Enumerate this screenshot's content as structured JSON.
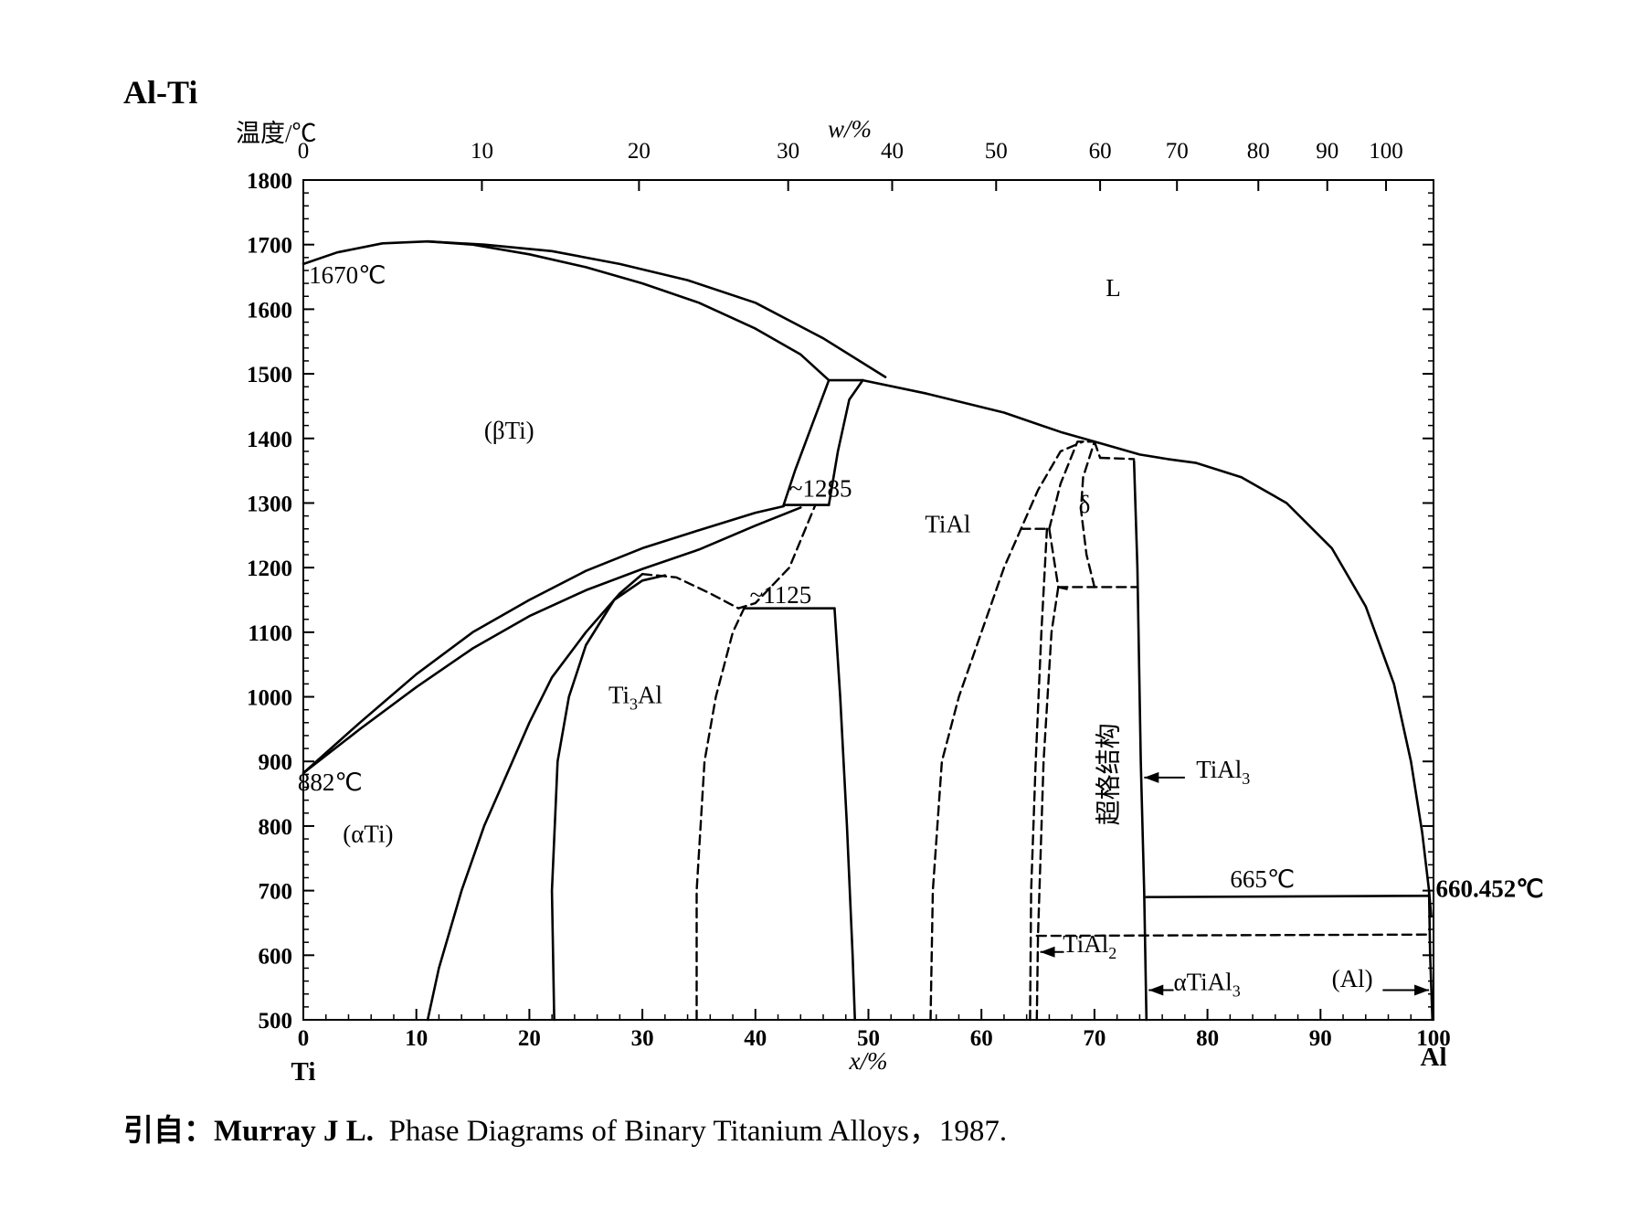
{
  "title": "Al-Ti",
  "citation": {
    "prefix": "引自：",
    "author": "Murray J L.",
    "text": "Phase Diagrams of Binary Titanium Alloys，1987."
  },
  "chart_data": {
    "type": "line",
    "title": "Al-Ti",
    "xlabel": "x/%",
    "x2label": "w/%",
    "ylabel": "温度/℃",
    "xlim": [
      0,
      100
    ],
    "ylim": [
      500,
      1800
    ],
    "x_ticks": [
      0,
      10,
      20,
      30,
      40,
      50,
      60,
      70,
      80,
      90,
      100
    ],
    "x_tick_labels": [
      "0",
      "10",
      "20",
      "30",
      "40",
      "50",
      "60",
      "70",
      "80",
      "90",
      "100"
    ],
    "w_ticks": [
      0,
      10,
      20,
      30,
      40,
      50,
      60,
      70,
      80,
      90,
      100
    ],
    "w_tick_labels": [
      "0",
      "10",
      "20",
      "30",
      "40",
      "50",
      "60",
      "70",
      "80",
      "90",
      "100"
    ],
    "w_tick_positions_x": [
      0,
      15.8,
      29.7,
      42.9,
      52.1,
      61.3,
      70.5,
      77.3,
      84.5,
      90.6,
      95.8
    ],
    "y_ticks": [
      500,
      600,
      700,
      800,
      900,
      1000,
      1100,
      1200,
      1300,
      1400,
      1500,
      1600,
      1700,
      1800
    ],
    "y_tick_labels": [
      "500",
      "600",
      "700",
      "800",
      "900",
      "1000",
      "1100",
      "1200",
      "1300",
      "1400",
      "1500",
      "1600",
      "1700",
      "1800"
    ],
    "x_end_labels": {
      "left": "Ti",
      "right": "Al"
    },
    "lines": [
      {
        "style": "solid",
        "points": [
          [
            0,
            1670
          ],
          [
            3,
            1688
          ],
          [
            7,
            1702
          ],
          [
            11,
            1705
          ],
          [
            15,
            1700
          ],
          [
            20,
            1685
          ],
          [
            25,
            1665
          ],
          [
            30,
            1640
          ],
          [
            35,
            1610
          ],
          [
            40,
            1570
          ],
          [
            44,
            1530
          ],
          [
            46.5,
            1490
          ]
        ]
      },
      {
        "style": "solid",
        "points": [
          [
            11,
            1705
          ],
          [
            16,
            1700
          ],
          [
            22,
            1690
          ],
          [
            28,
            1670
          ],
          [
            34,
            1645
          ],
          [
            40,
            1610
          ],
          [
            46,
            1555
          ],
          [
            51.5,
            1495
          ]
        ]
      },
      {
        "style": "solid",
        "points": [
          [
            0,
            882
          ],
          [
            5,
            960
          ],
          [
            10,
            1035
          ],
          [
            15,
            1100
          ],
          [
            20,
            1150
          ],
          [
            25,
            1195
          ],
          [
            30,
            1230
          ],
          [
            35,
            1258
          ],
          [
            40,
            1285
          ],
          [
            42.5,
            1295
          ]
        ]
      },
      {
        "style": "solid",
        "points": [
          [
            0,
            882
          ],
          [
            5,
            950
          ],
          [
            10,
            1015
          ],
          [
            15,
            1075
          ],
          [
            20,
            1125
          ],
          [
            25,
            1165
          ],
          [
            30,
            1198
          ],
          [
            35,
            1228
          ],
          [
            40,
            1265
          ],
          [
            44,
            1293
          ]
        ]
      },
      {
        "style": "solid",
        "points": [
          [
            42.5,
            1297
          ],
          [
            46.5,
            1297
          ]
        ]
      },
      {
        "style": "solid",
        "points": [
          [
            42.5,
            1297
          ],
          [
            43.5,
            1350
          ],
          [
            45,
            1420
          ],
          [
            46.5,
            1490
          ]
        ]
      },
      {
        "style": "solid",
        "points": [
          [
            46.5,
            1297
          ],
          [
            47.3,
            1380
          ],
          [
            48.3,
            1460
          ],
          [
            49.5,
            1490
          ]
        ]
      },
      {
        "style": "solid",
        "points": [
          [
            46.5,
            1490
          ],
          [
            49.5,
            1490
          ]
        ]
      },
      {
        "style": "solid",
        "points": [
          [
            49.5,
            1490
          ],
          [
            55,
            1470
          ],
          [
            62,
            1440
          ],
          [
            67,
            1410
          ],
          [
            71,
            1390
          ],
          [
            74,
            1375
          ],
          [
            76.5,
            1368
          ],
          [
            79,
            1362
          ],
          [
            83,
            1340
          ],
          [
            87,
            1300
          ],
          [
            91,
            1230
          ],
          [
            94,
            1140
          ],
          [
            96.5,
            1020
          ],
          [
            98,
            900
          ],
          [
            99,
            790
          ],
          [
            99.6,
            700
          ],
          [
            99.8,
            660
          ]
        ]
      },
      {
        "style": "solid",
        "points": [
          [
            42.5,
            1295
          ],
          [
            49.5,
            1490
          ]
        ],
        "hidden": true
      },
      {
        "style": "solid",
        "points": [
          [
            11,
            500
          ],
          [
            12,
            580
          ],
          [
            14,
            700
          ],
          [
            16,
            800
          ],
          [
            18,
            880
          ],
          [
            20,
            960
          ],
          [
            22,
            1030
          ],
          [
            25,
            1100
          ],
          [
            28,
            1160
          ],
          [
            30,
            1190
          ]
        ]
      },
      {
        "style": "solid",
        "points": [
          [
            22.2,
            500
          ],
          [
            22,
            700
          ],
          [
            22.5,
            900
          ],
          [
            23.5,
            1000
          ],
          [
            25,
            1080
          ],
          [
            27.5,
            1150
          ],
          [
            30,
            1180
          ],
          [
            32,
            1188
          ]
        ]
      },
      {
        "style": "solid",
        "points": [
          [
            39,
            1137
          ],
          [
            47,
            1137
          ]
        ]
      },
      {
        "style": "solid",
        "points": [
          [
            47,
            1137
          ],
          [
            47.5,
            1000
          ],
          [
            48.1,
            800
          ],
          [
            48.6,
            600
          ],
          [
            48.8,
            500
          ]
        ]
      },
      {
        "style": "solid",
        "points": [
          [
            73.5,
            1365
          ],
          [
            73.8,
            1200
          ],
          [
            74.1,
            900
          ],
          [
            74.4,
            700
          ],
          [
            74.6,
            500
          ]
        ]
      },
      {
        "style": "solid",
        "points": [
          [
            74.6,
            690
          ],
          [
            99.6,
            692
          ]
        ]
      },
      {
        "style": "dashed",
        "points": [
          [
            30,
            1190
          ],
          [
            33,
            1185
          ],
          [
            36,
            1160
          ],
          [
            38.5,
            1137
          ],
          [
            40,
            1145
          ],
          [
            43,
            1200
          ],
          [
            45.3,
            1297
          ]
        ]
      },
      {
        "style": "dashed",
        "points": [
          [
            34.8,
            500
          ],
          [
            34.8,
            700
          ],
          [
            35.5,
            900
          ],
          [
            36.5,
            1000
          ],
          [
            38,
            1100
          ],
          [
            39,
            1137
          ]
        ]
      },
      {
        "style": "dashed",
        "points": [
          [
            55.5,
            500
          ],
          [
            55.7,
            700
          ],
          [
            56.5,
            900
          ],
          [
            58,
            1000
          ],
          [
            60,
            1100
          ],
          [
            62,
            1200
          ],
          [
            63.5,
            1260
          ],
          [
            65,
            1320
          ],
          [
            67,
            1380
          ],
          [
            69,
            1395
          ]
        ]
      },
      {
        "style": "dashed",
        "points": [
          [
            63.5,
            1260
          ],
          [
            66,
            1260
          ]
        ]
      },
      {
        "style": "dashed",
        "points": [
          [
            66,
            1260
          ],
          [
            66.8,
            1170
          ],
          [
            68,
            1165
          ]
        ]
      },
      {
        "style": "dashed",
        "points": [
          [
            66,
            1260
          ],
          [
            67,
            1330
          ],
          [
            68.5,
            1395
          ],
          [
            70,
            1395
          ],
          [
            69,
            1340
          ],
          [
            68.8,
            1290
          ],
          [
            69.3,
            1220
          ],
          [
            70,
            1170
          ]
        ]
      },
      {
        "style": "dashed",
        "points": [
          [
            70,
            1395
          ],
          [
            70.5,
            1370
          ]
        ]
      },
      {
        "style": "dashed",
        "points": [
          [
            70.5,
            1370
          ],
          [
            73.5,
            1368
          ]
        ]
      },
      {
        "style": "dashed",
        "points": [
          [
            66.8,
            1170
          ],
          [
            73.8,
            1170
          ]
        ]
      },
      {
        "style": "dashed",
        "points": [
          [
            64.3,
            500
          ],
          [
            64.4,
            700
          ],
          [
            64.8,
            900
          ],
          [
            65.3,
            1100
          ],
          [
            65.8,
            1260
          ]
        ]
      },
      {
        "style": "dashed",
        "points": [
          [
            64.9,
            500
          ],
          [
            65.0,
            630
          ],
          [
            65.5,
            900
          ],
          [
            66.2,
            1100
          ],
          [
            66.8,
            1170
          ]
        ]
      },
      {
        "style": "dashed",
        "points": [
          [
            64.9,
            630
          ],
          [
            99.6,
            632
          ]
        ]
      },
      {
        "style": "solid",
        "points": [
          [
            99.6,
            700
          ],
          [
            99.7,
            600
          ],
          [
            99.9,
            500
          ]
        ]
      }
    ],
    "annotations": [
      {
        "text": "1670℃",
        "x": 0.5,
        "y": 1640
      },
      {
        "text": "L",
        "x": 71,
        "y": 1620
      },
      {
        "text": "(βTi)",
        "x": 16,
        "y": 1400
      },
      {
        "text": "~1285",
        "x": 43,
        "y": 1310
      },
      {
        "text": "TiAl",
        "x": 55,
        "y": 1255
      },
      {
        "text": "δ",
        "x": 68.6,
        "y": 1285
      },
      {
        "text": "~1125",
        "x": 39.5,
        "y": 1145
      },
      {
        "text": "Ti3Al",
        "x": 27,
        "y": 990
      },
      {
        "text": "882℃",
        "x": -0.5,
        "y": 855
      },
      {
        "text": "(αTi)",
        "x": 3.5,
        "y": 775
      },
      {
        "text": "超格结构",
        "x": 72,
        "y": 880
      },
      {
        "text": "TiAl3",
        "x": 79,
        "y": 875
      },
      {
        "text": "665℃",
        "x": 82,
        "y": 705
      },
      {
        "text": "660.452℃",
        "x": 100.2,
        "y": 690
      },
      {
        "text": "TiAl2",
        "x": 67.2,
        "y": 605
      },
      {
        "text": "αTiAl3",
        "x": 77,
        "y": 546
      },
      {
        "text": "(Al)",
        "x": 91,
        "y": 551
      }
    ],
    "arrows": [
      {
        "from": [
          78,
          875
        ],
        "to": [
          74.4,
          875
        ]
      },
      {
        "from": [
          67.3,
          605
        ],
        "to": [
          65.2,
          605
        ]
      },
      {
        "from": [
          77,
          546
        ],
        "to": [
          74.8,
          546
        ]
      },
      {
        "from": [
          95.5,
          546
        ],
        "to": [
          99.6,
          546
        ]
      }
    ],
    "grid": false
  }
}
